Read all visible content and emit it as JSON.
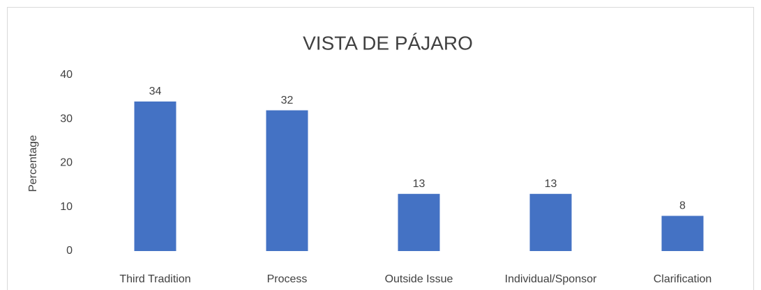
{
  "chart_data": {
    "type": "bar",
    "title": "VISTA DE PÁJARO",
    "y_label": "Percentage",
    "categories": [
      "Third Tradition",
      "Process",
      "Outside Issue",
      "Individual/Sponsor",
      "Clarification"
    ],
    "values": [
      34,
      32,
      13,
      13,
      8
    ],
    "color": "#4472c4",
    "ylim": [
      0,
      40
    ],
    "yticks": [
      0,
      10,
      20,
      30,
      40
    ],
    "grid": false,
    "data_labels": true
  }
}
